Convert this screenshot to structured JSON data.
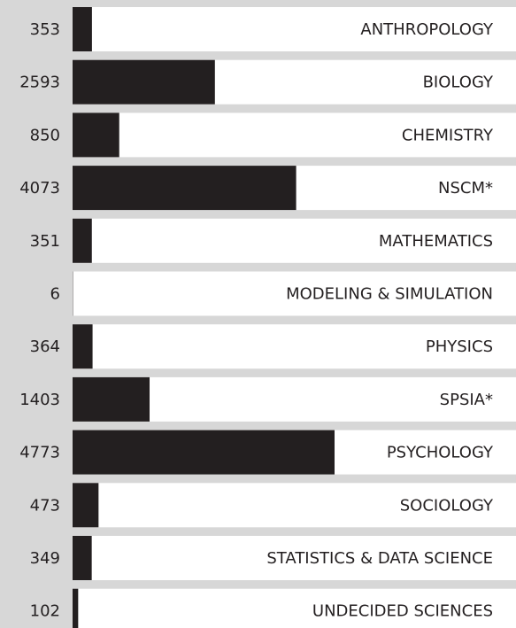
{
  "chart_data": {
    "type": "bar",
    "orientation": "horizontal",
    "categories": [
      "ANTHROPOLOGY",
      "BIOLOGY",
      "CHEMISTRY",
      "NSCM*",
      "MATHEMATICS",
      "MODELING & SIMULATION",
      "PHYSICS",
      "SPSIA*",
      "PSYCHOLOGY",
      "SOCIOLOGY",
      "STATISTICS & DATA SCIENCE",
      "UNDECIDED SCIENCES"
    ],
    "values": [
      353,
      2593,
      850,
      4073,
      351,
      6,
      364,
      1403,
      4773,
      473,
      349,
      102
    ],
    "color": "#231f20"
  }
}
